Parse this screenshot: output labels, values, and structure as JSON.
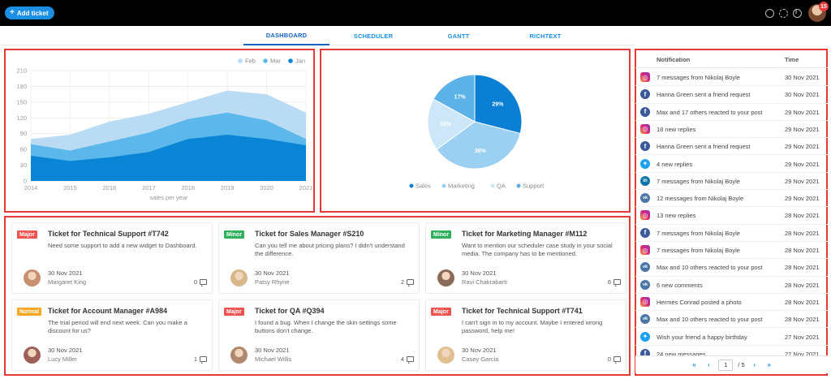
{
  "toolbar": {
    "add_ticket_label": "Add ticket",
    "notification_count": "15"
  },
  "tabs": [
    {
      "label": "DASHBOARD",
      "active": true
    },
    {
      "label": "SCHEDULER",
      "active": false
    },
    {
      "label": "GANTT",
      "active": false
    },
    {
      "label": "RICHTEXT",
      "active": false
    }
  ],
  "chart_data": [
    {
      "type": "area",
      "x": [
        "2014",
        "2015",
        "2016",
        "2017",
        "2018",
        "2019",
        "2020",
        "2021"
      ],
      "xlabel": "sales per year",
      "ylim": [
        0,
        210
      ],
      "yticks": [
        0,
        30,
        60,
        90,
        120,
        150,
        180,
        210
      ],
      "grid": true,
      "legend_position": "top-right",
      "series": [
        {
          "name": "Feb",
          "color": "#b9dcf4",
          "values": [
            80,
            88,
            113,
            128,
            150,
            172,
            165,
            130
          ]
        },
        {
          "name": "Mar",
          "color": "#5cb8ea",
          "values": [
            70,
            58,
            75,
            92,
            118,
            130,
            115,
            80
          ]
        },
        {
          "name": "Jan",
          "color": "#0a85d6",
          "values": [
            48,
            38,
            45,
            55,
            80,
            88,
            80,
            68
          ]
        }
      ]
    },
    {
      "type": "pie",
      "legend_position": "bottom",
      "slices": [
        {
          "name": "Sales",
          "value": 29,
          "label": "29%",
          "color": "#0a7fd3"
        },
        {
          "name": "Marketing",
          "value": 36,
          "label": "36%",
          "color": "#9bd0f2"
        },
        {
          "name": "QA",
          "value": 18,
          "label": "18%",
          "color": "#cde7f8"
        },
        {
          "name": "Support",
          "value": 17,
          "label": "17%",
          "color": "#5cb1e6"
        }
      ]
    }
  ],
  "tickets": [
    {
      "tag": "Major",
      "tag_type": "major",
      "title": "Ticket for Technical Support #T742",
      "desc": "Need some support to add a new widget to Dashboard.",
      "date": "30 Nov 2021",
      "name": "Margaret King",
      "comments": "0",
      "avatar_color": "#c89070"
    },
    {
      "tag": "Minor",
      "tag_type": "minor",
      "title": "Ticket for Sales Manager #S210",
      "desc": "Can you tell me about pricing plans? I didn't understand the difference.",
      "date": "30 Nov 2021",
      "name": "Patsy Rhyne",
      "comments": "2",
      "avatar_color": "#d8b88a"
    },
    {
      "tag": "Minor",
      "tag_type": "minor",
      "title": "Ticket for Marketing Manager #M112",
      "desc": "Want to mention our scheduler case study in your social media. The company has to be mentioned.",
      "date": "30 Nov 2021",
      "name": "Ravi Chakrabarti",
      "comments": "6",
      "avatar_color": "#8a6a58"
    },
    {
      "tag": "Normal",
      "tag_type": "normal",
      "title": "Ticket for Account Manager #A984",
      "desc": "The trial period will end next week. Can you make a discount for us?",
      "date": "30 Nov 2021",
      "name": "Lucy Miller",
      "comments": "1",
      "avatar_color": "#a0605a"
    },
    {
      "tag": "Major",
      "tag_type": "major",
      "title": "Ticket for QA #Q394",
      "desc": "I found a bug. When I change the skin settings some buttons don't change.",
      "date": "30 Nov 2021",
      "name": "Michael Willis",
      "comments": "4",
      "avatar_color": "#b08a70"
    },
    {
      "tag": "Major",
      "tag_type": "major",
      "title": "Ticket for Technical Support #T741",
      "desc": "I can't sign in to my account. Maybe I entered wrong password, help me!",
      "date": "30 Nov 2021",
      "name": "Casey Garcia",
      "comments": "0",
      "avatar_color": "#e0c090"
    }
  ],
  "notifications": {
    "header_notification": "Notification",
    "header_time": "Time",
    "items": [
      {
        "icon": "instagram",
        "text": "7 messages from Nikolaj Boyle",
        "time": "30 Nov 2021"
      },
      {
        "icon": "facebook",
        "text": "Hanna Green sent a friend request",
        "time": "30 Nov 2021"
      },
      {
        "icon": "facebook",
        "text": "Max and 17 others reacted to your post",
        "time": "29 Nov 2021"
      },
      {
        "icon": "instagram",
        "text": "18 new replies",
        "time": "29 Nov 2021"
      },
      {
        "icon": "facebook",
        "text": "Hanna Green sent a friend request",
        "time": "29 Nov 2021"
      },
      {
        "icon": "twitter",
        "text": "4 new replies",
        "time": "29 Nov 2021"
      },
      {
        "icon": "linkedin",
        "text": "7 messages from Nikolaj Boyle",
        "time": "29 Nov 2021"
      },
      {
        "icon": "vk",
        "text": "12 messages from Nikolaj Boyle",
        "time": "29 Nov 2021"
      },
      {
        "icon": "instagram",
        "text": "13 new replies",
        "time": "28 Nov 2021"
      },
      {
        "icon": "facebook",
        "text": "7 messages from Nikolaj Boyle",
        "time": "28 Nov 2021"
      },
      {
        "icon": "instagram",
        "text": "7 messages from Nikolaj Boyle",
        "time": "28 Nov 2021"
      },
      {
        "icon": "vk",
        "text": "Max and 10 others reacted to your post",
        "time": "28 Nov 2021"
      },
      {
        "icon": "vk",
        "text": "6 new comments",
        "time": "28 Nov 2021"
      },
      {
        "icon": "instagram",
        "text": "Hermes Conrad posted a photo",
        "time": "28 Nov 2021"
      },
      {
        "icon": "vk",
        "text": "Max and 10 others reacted to your post",
        "time": "28 Nov 2021"
      },
      {
        "icon": "twitter",
        "text": "Wish your friend a happy birthday",
        "time": "27 Nov 2021"
      },
      {
        "icon": "facebook",
        "text": "24 new messages",
        "time": "27 Nov 2021"
      }
    ]
  },
  "pager": {
    "current_page": "1",
    "total": "/ 5"
  }
}
